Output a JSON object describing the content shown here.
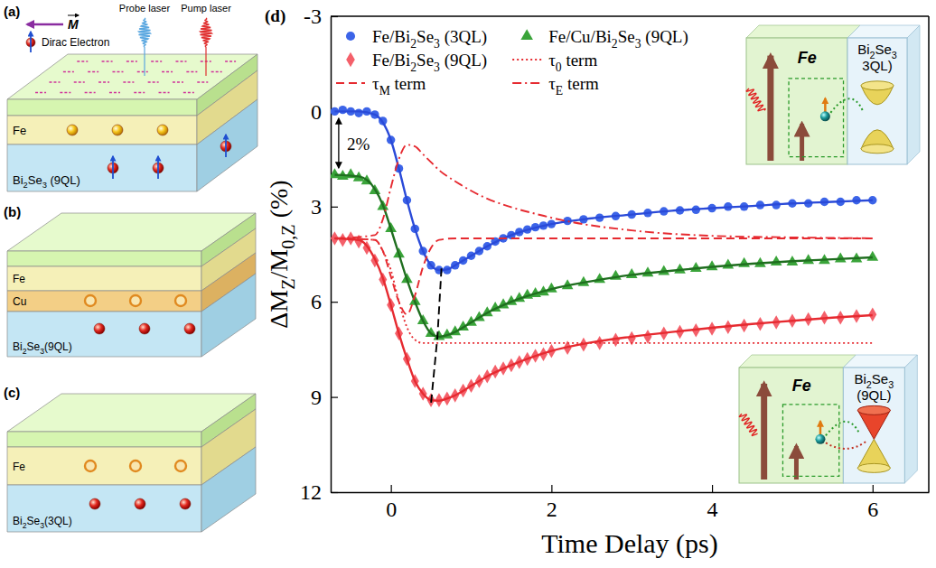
{
  "chart_data": {
    "type": "scatter",
    "xlabel": "Time Delay (ps)",
    "ylabel": "ΔMZ/M0,Z (%)",
    "xlim": [
      -0.75,
      6.7
    ],
    "ylim": [
      12,
      -3
    ],
    "xticks": [
      0,
      2,
      4,
      6
    ],
    "yticks": [
      -3,
      0,
      3,
      6,
      9,
      12
    ],
    "grid": false,
    "legend": "upper left",
    "annotations": [
      "(d)",
      "2%"
    ],
    "series": [
      {
        "name": "Fe/Bi2Se3 (3QL)",
        "type": "scatter",
        "marker": "circle",
        "color": "#3c64e8",
        "x": [
          -0.7,
          -0.6,
          -0.5,
          -0.4,
          -0.3,
          -0.2,
          -0.1,
          0,
          0.1,
          0.2,
          0.3,
          0.4,
          0.5,
          0.6,
          0.7,
          0.8,
          0.9,
          1,
          1.1,
          1.2,
          1.3,
          1.4,
          1.5,
          1.6,
          1.7,
          1.8,
          1.9,
          2,
          2.2,
          2.4,
          2.6,
          2.8,
          3,
          3.2,
          3.4,
          3.6,
          3.8,
          4,
          4.2,
          4.4,
          4.6,
          4.8,
          5,
          5.2,
          5.4,
          5.6,
          5.8,
          6
        ],
        "values": [
          0,
          -0.05,
          0,
          0.05,
          0,
          0.1,
          0.3,
          0.9,
          1.8,
          2.8,
          3.7,
          4.4,
          4.85,
          5,
          5,
          4.85,
          4.7,
          4.55,
          4.4,
          4.25,
          4.1,
          4,
          3.9,
          3.8,
          3.72,
          3.65,
          3.6,
          3.55,
          3.45,
          3.4,
          3.35,
          3.3,
          3.25,
          3.2,
          3.15,
          3.12,
          3.1,
          3.05,
          3,
          3,
          2.95,
          2.95,
          2.9,
          2.9,
          2.85,
          2.85,
          2.8,
          2.8
        ]
      },
      {
        "name": "Fe/Cu/Bi2Se3 (9QL)",
        "type": "scatter",
        "marker": "triangle",
        "color": "#3aa43a",
        "x": [
          -0.7,
          -0.6,
          -0.5,
          -0.4,
          -0.3,
          -0.2,
          -0.1,
          0,
          0.1,
          0.2,
          0.3,
          0.4,
          0.5,
          0.6,
          0.7,
          0.8,
          0.9,
          1,
          1.1,
          1.2,
          1.3,
          1.4,
          1.5,
          1.6,
          1.7,
          1.8,
          1.9,
          2,
          2.2,
          2.4,
          2.6,
          2.8,
          3,
          3.2,
          3.4,
          3.6,
          3.8,
          4,
          4.2,
          4.4,
          4.6,
          4.8,
          5,
          5.2,
          5.4,
          5.6,
          5.8,
          6
        ],
        "values": [
          2,
          2.05,
          2,
          2.1,
          2.2,
          2.5,
          3,
          3.7,
          4.5,
          5.3,
          6,
          6.6,
          7,
          7.1,
          7.05,
          6.95,
          6.8,
          6.65,
          6.5,
          6.35,
          6.2,
          6.1,
          6,
          5.9,
          5.8,
          5.75,
          5.7,
          5.6,
          5.5,
          5.4,
          5.3,
          5.2,
          5.15,
          5.1,
          5.05,
          5,
          4.95,
          4.9,
          4.85,
          4.8,
          4.8,
          4.75,
          4.75,
          4.7,
          4.7,
          4.65,
          4.65,
          4.6
        ]
      },
      {
        "name": "Fe/Bi2Se3 (9QL)",
        "type": "scatter",
        "marker": "diamond",
        "color": "#f4606a",
        "x": [
          -0.7,
          -0.6,
          -0.5,
          -0.4,
          -0.3,
          -0.2,
          -0.1,
          0,
          0.1,
          0.2,
          0.3,
          0.4,
          0.5,
          0.6,
          0.7,
          0.8,
          0.9,
          1,
          1.1,
          1.2,
          1.3,
          1.4,
          1.5,
          1.6,
          1.7,
          1.8,
          1.9,
          2,
          2.2,
          2.4,
          2.6,
          2.8,
          3,
          3.2,
          3.4,
          3.6,
          3.8,
          4,
          4.2,
          4.4,
          4.6,
          4.8,
          5,
          5.2,
          5.4,
          5.6,
          5.8,
          6
        ],
        "values": [
          4,
          4.05,
          4,
          4.1,
          4.3,
          4.7,
          5.3,
          6.1,
          7,
          7.8,
          8.5,
          8.9,
          9.1,
          9.1,
          9.05,
          8.95,
          8.8,
          8.65,
          8.5,
          8.35,
          8.2,
          8.1,
          8,
          7.9,
          7.8,
          7.7,
          7.65,
          7.55,
          7.45,
          7.35,
          7.3,
          7.2,
          7.15,
          7.1,
          7,
          6.95,
          6.9,
          6.85,
          6.8,
          6.75,
          6.7,
          6.65,
          6.6,
          6.55,
          6.5,
          6.5,
          6.45,
          6.4
        ]
      },
      {
        "type": "line",
        "line_style": "solid",
        "color": "#2a4ad8",
        "x": [
          -0.7,
          -0.4,
          -0.2,
          -0.1,
          0,
          0.1,
          0.2,
          0.3,
          0.4,
          0.5,
          0.6,
          0.7,
          0.8,
          1,
          1.2,
          1.5,
          2,
          2.5,
          3,
          3.5,
          4,
          4.5,
          5,
          5.5,
          6
        ],
        "values": [
          0,
          0,
          0.1,
          0.35,
          0.9,
          1.8,
          2.8,
          3.7,
          4.4,
          4.85,
          5,
          4.98,
          4.85,
          4.55,
          4.25,
          3.9,
          3.55,
          3.37,
          3.25,
          3.13,
          3.05,
          2.98,
          2.9,
          2.85,
          2.8
        ]
      },
      {
        "type": "line",
        "line_style": "solid",
        "color": "#1f6e1f",
        "x": [
          -0.7,
          -0.4,
          -0.2,
          -0.1,
          0,
          0.1,
          0.2,
          0.3,
          0.4,
          0.5,
          0.6,
          0.7,
          0.8,
          1,
          1.2,
          1.5,
          2,
          2.5,
          3,
          3.5,
          4,
          4.5,
          5,
          5.5,
          6
        ],
        "values": [
          2,
          2.05,
          2.45,
          2.95,
          3.7,
          4.5,
          5.3,
          6,
          6.6,
          7,
          7.1,
          7.05,
          6.95,
          6.65,
          6.35,
          6,
          5.6,
          5.35,
          5.15,
          5.02,
          4.9,
          4.8,
          4.72,
          4.66,
          4.6
        ]
      },
      {
        "type": "line",
        "line_style": "solid",
        "color": "#e62a30",
        "x": [
          -0.7,
          -0.4,
          -0.2,
          -0.1,
          0,
          0.1,
          0.2,
          0.3,
          0.4,
          0.5,
          0.6,
          0.7,
          0.8,
          1,
          1.2,
          1.5,
          2,
          2.5,
          3,
          3.5,
          4,
          4.5,
          5,
          5.5,
          6
        ],
        "values": [
          4,
          4.05,
          4.65,
          5.25,
          6.1,
          7,
          7.8,
          8.5,
          8.9,
          9.1,
          9.12,
          9.05,
          8.95,
          8.65,
          8.35,
          8,
          7.55,
          7.28,
          7.1,
          6.95,
          6.82,
          6.7,
          6.6,
          6.5,
          6.42
        ]
      },
      {
        "name": "τ0 term",
        "type": "line",
        "line_style": "dotted",
        "color": "#e62a30",
        "x": [
          -0.7,
          -0.2,
          -0.1,
          0,
          0.1,
          0.2,
          0.3,
          0.4,
          0.6,
          1,
          2,
          3,
          4,
          5,
          6
        ],
        "values": [
          4,
          4.05,
          4.4,
          5,
          6,
          6.8,
          7.2,
          7.3,
          7.3,
          7.3,
          7.3,
          7.3,
          7.3,
          7.3,
          7.3
        ]
      },
      {
        "name": "τM term",
        "type": "line",
        "line_style": "dashed",
        "color": "#e62a30",
        "x": [
          -0.7,
          -0.2,
          -0.1,
          0,
          0.1,
          0.2,
          0.3,
          0.4,
          0.5,
          0.6,
          0.8,
          1,
          2,
          3,
          4,
          5,
          6
        ],
        "values": [
          4,
          4.05,
          4.4,
          5.2,
          6,
          6.4,
          5.8,
          4.9,
          4.3,
          4.05,
          4,
          4,
          4,
          4,
          4,
          4,
          4
        ]
      },
      {
        "name": "τE term",
        "type": "line",
        "line_style": "dashdot",
        "color": "#e62a30",
        "x": [
          -0.7,
          -0.2,
          -0.1,
          0,
          0.1,
          0.2,
          0.3,
          0.4,
          0.5,
          0.6,
          0.8,
          1,
          2,
          3,
          4,
          5,
          6
        ],
        "values": [
          4,
          3.9,
          3.4,
          2.4,
          1.5,
          1.05,
          1.1,
          1.35,
          1.6,
          1.85,
          2.2,
          2.5,
          3.35,
          3.75,
          3.92,
          3.97,
          4
        ]
      },
      {
        "type": "line",
        "line_style": "dashed",
        "color": "#000000",
        "x": [
          0.63,
          0.58,
          0.5
        ],
        "values": [
          4.95,
          7.1,
          9.2
        ]
      }
    ]
  },
  "diagrams": {
    "a": {
      "label": "(a)",
      "magnetization": "M",
      "electron": "Dirac Electron",
      "probe": "Probe laser",
      "pump": "Pump laser",
      "layers": [
        "Fe",
        "Bi2Se3 (9QL)"
      ]
    },
    "b": {
      "label": "(b)",
      "layers": [
        "Fe",
        "Cu",
        "Bi2Se3(9QL)"
      ]
    },
    "c": {
      "label": "(c)",
      "layers": [
        "Fe",
        "Bi2Se3(3QL)"
      ]
    },
    "inset_top": {
      "labels": [
        "Fe",
        "Bi2Se3",
        "3QL)"
      ]
    },
    "inset_bottom": {
      "labels": [
        "Fe",
        "Bi2Se3",
        "(9QL)"
      ]
    }
  }
}
